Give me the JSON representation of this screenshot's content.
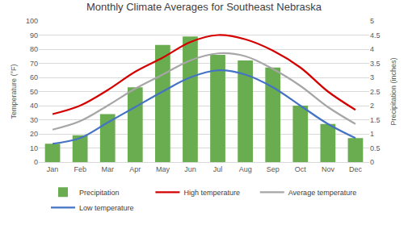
{
  "chart_data": {
    "type": "combo",
    "title": "Monthly Climate Averages for Southeast Nebraska",
    "categories": [
      "Jan",
      "Feb",
      "Mar",
      "Apr",
      "May",
      "Jun",
      "Jul",
      "Aug",
      "Sep",
      "Oct",
      "Nov",
      "Dec"
    ],
    "y_label": "Temperature (°F)",
    "y2_label": "Precipitation (inches)",
    "ylim": [
      0,
      100
    ],
    "yticks": [
      0,
      10,
      20,
      30,
      40,
      50,
      60,
      70,
      80,
      90,
      100
    ],
    "y2lim": [
      0,
      5
    ],
    "y2ticks": [
      0,
      0.5,
      1,
      1.5,
      2,
      2.5,
      3,
      3.5,
      4,
      4.5,
      5
    ],
    "grid": true,
    "legend": "bottom",
    "series": [
      {
        "name": "Precipitation",
        "type": "bar",
        "axis": "y2",
        "color": "#6aac50",
        "values": [
          0.65,
          0.95,
          1.7,
          2.65,
          4.15,
          4.45,
          3.8,
          3.6,
          3.35,
          2.0,
          1.35,
          0.85
        ]
      },
      {
        "name": "High temperature",
        "type": "line",
        "color": "#d40000",
        "line_style": "smooth",
        "values": [
          34,
          40,
          51,
          64,
          74,
          85,
          90,
          87,
          79,
          67,
          50,
          37
        ]
      },
      {
        "name": "Average temperature",
        "type": "line",
        "color": "#a6a6a6",
        "line_style": "smooth",
        "values": [
          23,
          29,
          40,
          52,
          62,
          72,
          77,
          75,
          66,
          54,
          39,
          27
        ]
      },
      {
        "name": "Low temperature",
        "type": "line",
        "color": "#4472c4",
        "line_style": "smooth",
        "values": [
          13,
          17,
          28,
          39,
          50,
          60,
          65,
          62,
          53,
          40,
          27,
          17
        ]
      }
    ]
  }
}
